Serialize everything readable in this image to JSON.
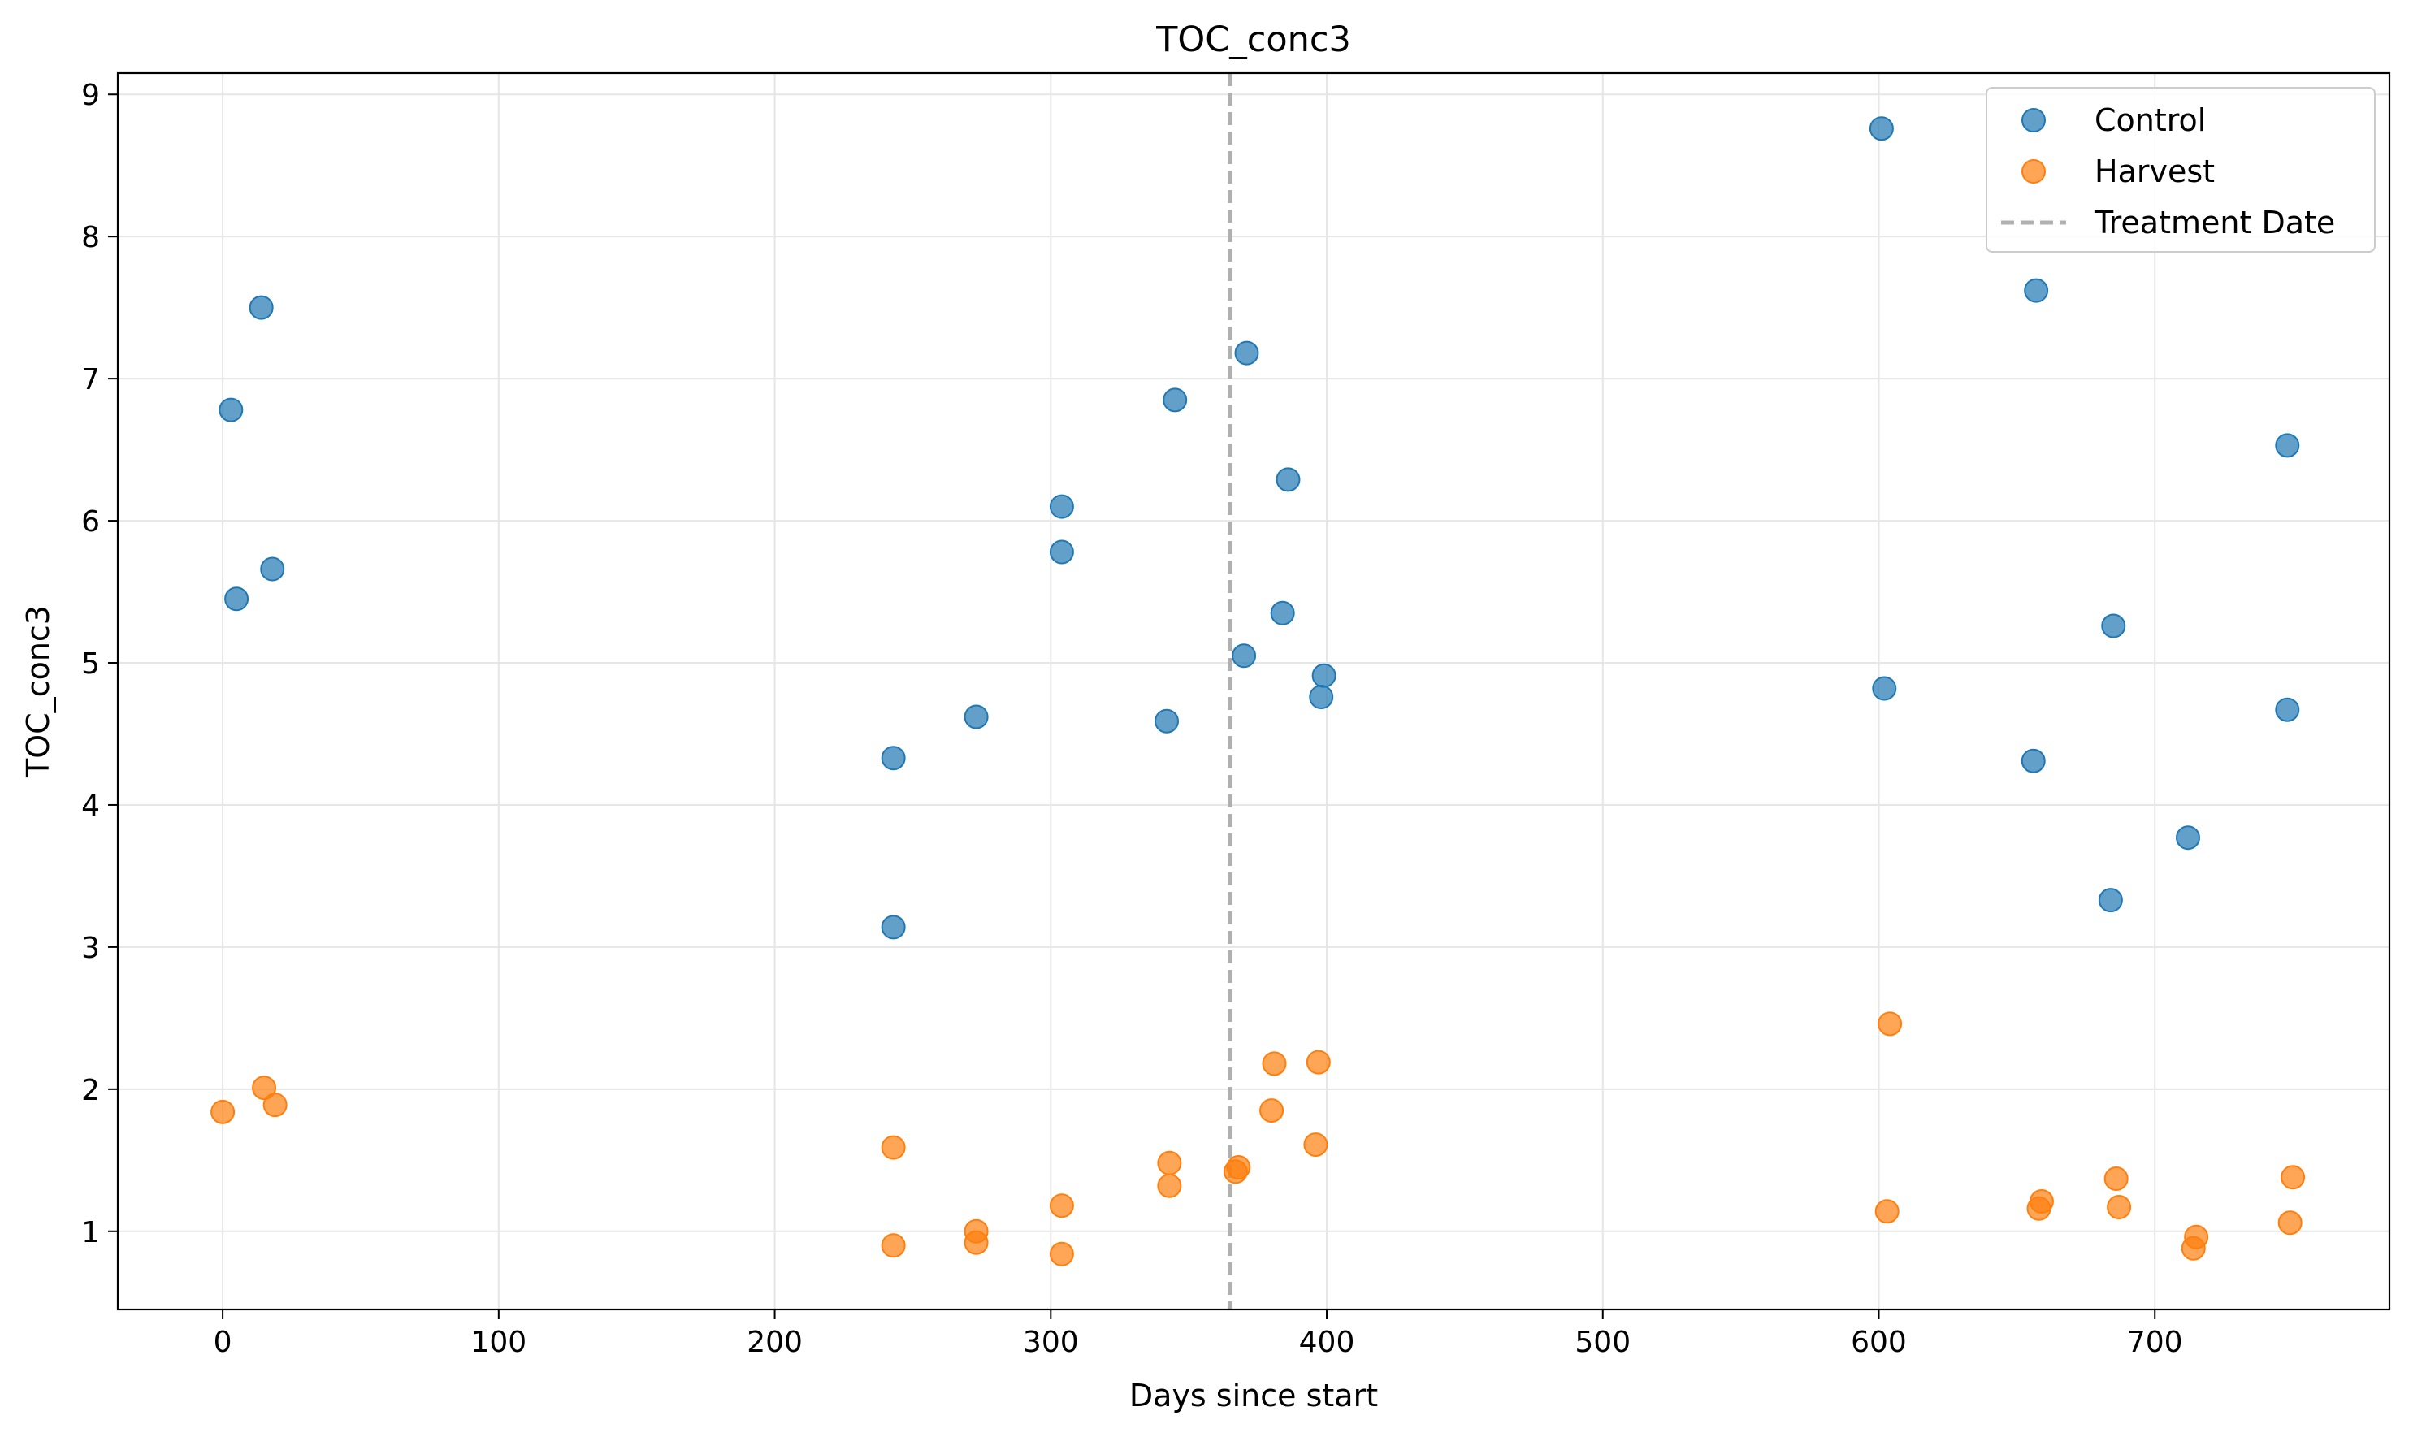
{
  "chart_data": {
    "type": "scatter",
    "title": "TOC_conc3",
    "xlabel": "Days since start",
    "ylabel": "TOC_conc3",
    "xlim": [
      -38,
      785
    ],
    "ylim": [
      0.45,
      9.15
    ],
    "xticks": [
      0,
      100,
      200,
      300,
      400,
      500,
      600,
      700
    ],
    "yticks": [
      1,
      2,
      3,
      4,
      5,
      6,
      7,
      8,
      9
    ],
    "grid": true,
    "legend_position": "top-right",
    "series": [
      {
        "name": "Control",
        "color": "#1f77b4",
        "points": [
          [
            3,
            6.78
          ],
          [
            5,
            5.45
          ],
          [
            14,
            7.5
          ],
          [
            18,
            5.66
          ],
          [
            243,
            4.33
          ],
          [
            243,
            3.14
          ],
          [
            273,
            4.62
          ],
          [
            304,
            6.1
          ],
          [
            304,
            5.78
          ],
          [
            342,
            4.59
          ],
          [
            345,
            6.85
          ],
          [
            370,
            5.05
          ],
          [
            371,
            7.18
          ],
          [
            384,
            5.35
          ],
          [
            386,
            6.29
          ],
          [
            398,
            4.76
          ],
          [
            399,
            4.91
          ],
          [
            601,
            8.76
          ],
          [
            602,
            4.82
          ],
          [
            656,
            4.31
          ],
          [
            657,
            7.62
          ],
          [
            684,
            3.33
          ],
          [
            685,
            5.26
          ],
          [
            712,
            3.77
          ],
          [
            748,
            6.53
          ],
          [
            748,
            4.67
          ]
        ]
      },
      {
        "name": "Harvest",
        "color": "#ff7f0e",
        "points": [
          [
            0,
            1.84
          ],
          [
            15,
            2.01
          ],
          [
            19,
            1.89
          ],
          [
            243,
            1.59
          ],
          [
            243,
            0.9
          ],
          [
            273,
            1.0
          ],
          [
            273,
            0.92
          ],
          [
            304,
            1.18
          ],
          [
            304,
            0.84
          ],
          [
            343,
            1.48
          ],
          [
            343,
            1.32
          ],
          [
            367,
            1.42
          ],
          [
            368,
            1.45
          ],
          [
            380,
            1.85
          ],
          [
            381,
            2.18
          ],
          [
            396,
            1.61
          ],
          [
            397,
            2.19
          ],
          [
            603,
            1.14
          ],
          [
            604,
            2.46
          ],
          [
            658,
            1.16
          ],
          [
            659,
            1.21
          ],
          [
            686,
            1.37
          ],
          [
            687,
            1.17
          ],
          [
            714,
            0.88
          ],
          [
            715,
            0.96
          ],
          [
            749,
            1.06
          ],
          [
            750,
            1.38
          ]
        ]
      }
    ],
    "reference_line": {
      "name": "Treatment Date",
      "x": 365,
      "color": "#b0b0b0",
      "style": "dashed"
    }
  }
}
